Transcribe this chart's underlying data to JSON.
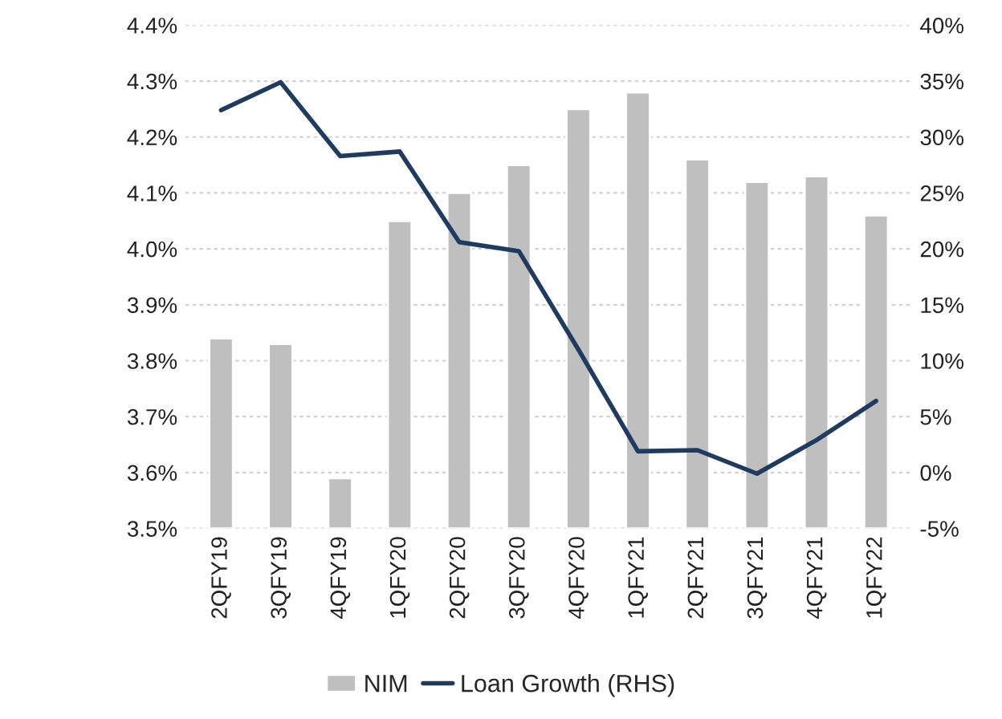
{
  "chart_data": {
    "type": "bar",
    "categories": [
      "2QFY19",
      "3QFY19",
      "4QFY19",
      "1QFY20",
      "2QFY20",
      "3QFY20",
      "4QFY20",
      "1QFY21",
      "2QFY21",
      "3QFY21",
      "4QFY21",
      "1QFY22"
    ],
    "series": [
      {
        "name": "NIM",
        "color": "#bfbfbf",
        "values": [
          3.84,
          3.83,
          3.59,
          4.05,
          4.1,
          4.15,
          4.25,
          4.28,
          4.16,
          4.12,
          4.13,
          4.06
        ]
      },
      {
        "name": "Loan Growth (RHS)",
        "type": "line",
        "axis": "y2",
        "color": "#1f3b5f",
        "values": [
          32.4,
          34.9,
          28.3,
          28.7,
          20.6,
          19.8,
          11.0,
          1.9,
          2.0,
          -0.1,
          2.9,
          6.4
        ]
      }
    ],
    "ylim": [
      3.5,
      4.4
    ],
    "yticks": [
      {
        "value": 3.5,
        "label": "3.5%"
      },
      {
        "value": 3.6,
        "label": "3.6%"
      },
      {
        "value": 3.7,
        "label": "3.7%"
      },
      {
        "value": 3.8,
        "label": "3.8%"
      },
      {
        "value": 3.9,
        "label": "3.9%"
      },
      {
        "value": 4.0,
        "label": "4.0%"
      },
      {
        "value": 4.1,
        "label": "4.1%"
      },
      {
        "value": 4.2,
        "label": "4.2%"
      },
      {
        "value": 4.3,
        "label": "4.3%"
      },
      {
        "value": 4.4,
        "label": "4.4%"
      }
    ],
    "y2lim": [
      -5,
      40
    ],
    "y2ticks": [
      {
        "value": -5,
        "label": "-5%"
      },
      {
        "value": 0,
        "label": "0%"
      },
      {
        "value": 5,
        "label": "5%"
      },
      {
        "value": 10,
        "label": "10%"
      },
      {
        "value": 15,
        "label": "15%"
      },
      {
        "value": 20,
        "label": "20%"
      },
      {
        "value": 25,
        "label": "25%"
      },
      {
        "value": 30,
        "label": "30%"
      },
      {
        "value": 35,
        "label": "35%"
      },
      {
        "value": 40,
        "label": "40%"
      }
    ],
    "grid": "y",
    "legend": "bottom",
    "line_style": "solid",
    "marker": "none"
  }
}
